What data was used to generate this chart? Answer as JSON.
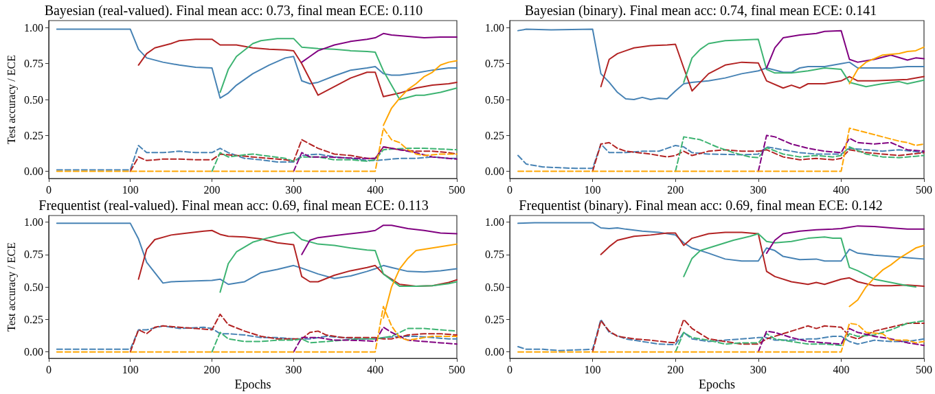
{
  "chart_data": [
    {
      "type": "line",
      "title": "Bayesian (real-valued). Final mean acc: 0.73, final mean ECE: 0.110",
      "ylabel": "Test accuracy / ECE",
      "marker": "none",
      "xlim": [
        0,
        500
      ],
      "xticks": [
        0,
        100,
        200,
        300,
        400,
        500
      ],
      "ylim": [
        -0.05,
        1.05
      ],
      "yticks": [
        {
          "value": 0,
          "label": "0.00"
        },
        {
          "value": 0.25,
          "label": "0.25"
        },
        {
          "value": 0.5,
          "label": "0.50"
        },
        {
          "value": 0.75,
          "label": "0.75"
        },
        {
          "value": 1,
          "label": "1.00"
        }
      ],
      "series": [
        {
          "color": "#4682b4",
          "line_style": "solid",
          "x": [
            10,
            100,
            110,
            120,
            140,
            160,
            180,
            200,
            210,
            220,
            230,
            250,
            270,
            290,
            300,
            310,
            320,
            330,
            350,
            370,
            390,
            400,
            410,
            420,
            430,
            450,
            470,
            490,
            500
          ],
          "values": [
            0.99,
            0.99,
            0.85,
            0.79,
            0.76,
            0.74,
            0.725,
            0.72,
            0.51,
            0.545,
            0.6,
            0.68,
            0.74,
            0.79,
            0.8,
            0.63,
            0.61,
            0.62,
            0.665,
            0.705,
            0.72,
            0.73,
            0.68,
            0.67,
            0.67,
            0.685,
            0.705,
            0.72,
            0.72
          ]
        },
        {
          "color": "#b22222",
          "line_style": "solid",
          "x": [
            110,
            120,
            130,
            150,
            160,
            180,
            200,
            210,
            230,
            250,
            270,
            290,
            300,
            310,
            330,
            350,
            370,
            390,
            400,
            410,
            430,
            450,
            470,
            490,
            500
          ],
          "values": [
            0.74,
            0.82,
            0.86,
            0.89,
            0.91,
            0.92,
            0.92,
            0.88,
            0.88,
            0.86,
            0.85,
            0.845,
            0.84,
            0.75,
            0.53,
            0.59,
            0.65,
            0.69,
            0.69,
            0.52,
            0.545,
            0.58,
            0.6,
            0.61,
            0.62
          ]
        },
        {
          "color": "#3cb371",
          "line_style": "solid",
          "x": [
            210,
            220,
            230,
            250,
            260,
            280,
            300,
            310,
            330,
            350,
            370,
            390,
            400,
            410,
            430,
            450,
            460,
            480,
            500
          ],
          "values": [
            0.55,
            0.71,
            0.8,
            0.89,
            0.91,
            0.925,
            0.925,
            0.865,
            0.855,
            0.85,
            0.84,
            0.835,
            0.83,
            0.7,
            0.5,
            0.53,
            0.53,
            0.55,
            0.58
          ]
        },
        {
          "color": "#800080",
          "line_style": "solid",
          "x": [
            310,
            320,
            330,
            350,
            370,
            390,
            400,
            410,
            420,
            440,
            460,
            480,
            500
          ],
          "values": [
            0.76,
            0.8,
            0.84,
            0.88,
            0.905,
            0.92,
            0.93,
            0.96,
            0.95,
            0.94,
            0.93,
            0.935,
            0.935
          ]
        },
        {
          "color": "#ffa500",
          "line_style": "solid",
          "x": [
            410,
            420,
            430,
            440,
            450,
            460,
            470,
            480,
            490,
            500
          ],
          "values": [
            0.32,
            0.44,
            0.51,
            0.57,
            0.61,
            0.66,
            0.69,
            0.74,
            0.76,
            0.77
          ]
        },
        {
          "color": "#4682b4",
          "line_style": "dashed",
          "x": [
            10,
            100,
            110,
            120,
            140,
            160,
            180,
            200,
            210,
            220,
            240,
            260,
            280,
            300,
            310,
            330,
            350,
            370,
            390,
            400,
            410,
            430,
            450,
            470,
            490,
            500
          ],
          "values": [
            0.01,
            0.01,
            0.18,
            0.13,
            0.13,
            0.14,
            0.13,
            0.13,
            0.16,
            0.13,
            0.09,
            0.08,
            0.065,
            0.065,
            0.11,
            0.12,
            0.1,
            0.09,
            0.075,
            0.075,
            0.08,
            0.09,
            0.09,
            0.1,
            0.09,
            0.09
          ]
        },
        {
          "color": "#b22222",
          "line_style": "dashed",
          "x": [
            100,
            110,
            120,
            140,
            160,
            180,
            200,
            210,
            230,
            250,
            270,
            290,
            300,
            310,
            330,
            350,
            370,
            390,
            400,
            410,
            430,
            450,
            470,
            490,
            500
          ],
          "values": [
            0,
            0.1,
            0.075,
            0.085,
            0.085,
            0.08,
            0.08,
            0.12,
            0.11,
            0.1,
            0.09,
            0.08,
            0.07,
            0.22,
            0.16,
            0.12,
            0.11,
            0.09,
            0.09,
            0.17,
            0.15,
            0.14,
            0.14,
            0.13,
            0.12
          ]
        },
        {
          "color": "#3cb371",
          "line_style": "dashed",
          "x": [
            200,
            210,
            220,
            240,
            250,
            270,
            290,
            300,
            310,
            330,
            350,
            370,
            390,
            400,
            410,
            420,
            440,
            460,
            480,
            500
          ],
          "values": [
            0,
            0.13,
            0.1,
            0.115,
            0.12,
            0.105,
            0.09,
            0.07,
            0.1,
            0.1,
            0.08,
            0.08,
            0.07,
            0.08,
            0.15,
            0.155,
            0.16,
            0.16,
            0.155,
            0.15
          ]
        },
        {
          "color": "#800080",
          "line_style": "dashed",
          "x": [
            300,
            310,
            320,
            340,
            360,
            380,
            400,
            410,
            430,
            450,
            470,
            490,
            500
          ],
          "values": [
            0,
            0.13,
            0.1,
            0.1,
            0.095,
            0.09,
            0.09,
            0.17,
            0.15,
            0.13,
            0.1,
            0.09,
            0.085
          ]
        },
        {
          "color": "#ffa500",
          "line_style": "dashed",
          "x": [
            10,
            400,
            410,
            420,
            430,
            440,
            450,
            460,
            480,
            500
          ],
          "values": [
            0,
            0,
            0.3,
            0.22,
            0.2,
            0.15,
            0.12,
            0.11,
            0.12,
            0.12
          ]
        }
      ]
    },
    {
      "type": "line",
      "title": "Bayesian (binary). Final mean acc: 0.74, final mean ECE: 0.141",
      "marker": "none",
      "xlim": [
        0,
        500
      ],
      "xticks": [
        0,
        100,
        200,
        300,
        400,
        500
      ],
      "ylim": [
        -0.05,
        1.05
      ],
      "yticks": [
        {
          "value": 0,
          "label": "0.00"
        },
        {
          "value": 0.25,
          "label": "0.25"
        },
        {
          "value": 0.5,
          "label": "0.50"
        },
        {
          "value": 0.75,
          "label": "0.75"
        },
        {
          "value": 1,
          "label": "1.00"
        }
      ],
      "series": [
        {
          "color": "#4682b4",
          "line_style": "solid",
          "x": [
            10,
            20,
            50,
            100,
            110,
            120,
            130,
            140,
            150,
            160,
            170,
            180,
            190,
            200,
            210,
            220,
            240,
            260,
            280,
            300,
            310,
            330,
            340,
            350,
            360,
            380,
            400,
            410,
            420,
            440,
            460,
            480,
            500
          ],
          "values": [
            0.98,
            0.99,
            0.985,
            0.99,
            0.68,
            0.62,
            0.55,
            0.505,
            0.5,
            0.515,
            0.5,
            0.51,
            0.505,
            0.56,
            0.61,
            0.62,
            0.63,
            0.65,
            0.68,
            0.7,
            0.72,
            0.69,
            0.69,
            0.72,
            0.73,
            0.73,
            0.75,
            0.76,
            0.72,
            0.72,
            0.72,
            0.73,
            0.73
          ]
        },
        {
          "color": "#b22222",
          "line_style": "solid",
          "x": [
            110,
            120,
            130,
            140,
            150,
            170,
            190,
            200,
            210,
            220,
            240,
            260,
            280,
            300,
            310,
            330,
            340,
            350,
            360,
            380,
            400,
            410,
            420,
            440,
            460,
            480,
            500
          ],
          "values": [
            0.59,
            0.78,
            0.82,
            0.84,
            0.86,
            0.875,
            0.88,
            0.885,
            0.72,
            0.56,
            0.68,
            0.74,
            0.76,
            0.755,
            0.63,
            0.58,
            0.6,
            0.58,
            0.61,
            0.61,
            0.63,
            0.66,
            0.63,
            0.63,
            0.635,
            0.64,
            0.66
          ]
        },
        {
          "color": "#3cb371",
          "line_style": "solid",
          "x": [
            210,
            220,
            230,
            240,
            260,
            280,
            300,
            310,
            320,
            340,
            360,
            380,
            400,
            410,
            430,
            450,
            470,
            480,
            500
          ],
          "values": [
            0.62,
            0.79,
            0.85,
            0.89,
            0.91,
            0.915,
            0.92,
            0.71,
            0.685,
            0.685,
            0.7,
            0.72,
            0.71,
            0.62,
            0.59,
            0.61,
            0.625,
            0.61,
            0.635
          ]
        },
        {
          "color": "#800080",
          "line_style": "solid",
          "x": [
            310,
            320,
            330,
            350,
            370,
            380,
            400,
            410,
            420,
            440,
            460,
            480,
            490,
            500
          ],
          "values": [
            0.72,
            0.86,
            0.93,
            0.95,
            0.96,
            0.975,
            0.98,
            0.78,
            0.76,
            0.78,
            0.81,
            0.775,
            0.79,
            0.785
          ]
        },
        {
          "color": "#ffa500",
          "line_style": "solid",
          "x": [
            410,
            420,
            430,
            450,
            470,
            480,
            490,
            500
          ],
          "values": [
            0.61,
            0.71,
            0.76,
            0.81,
            0.82,
            0.835,
            0.84,
            0.865
          ]
        },
        {
          "color": "#4682b4",
          "line_style": "dashed",
          "x": [
            10,
            20,
            40,
            60,
            80,
            100,
            110,
            120,
            140,
            160,
            180,
            200,
            210,
            220,
            240,
            280,
            300,
            310,
            330,
            350,
            370,
            390,
            400,
            410,
            430,
            450,
            470,
            500
          ],
          "values": [
            0.11,
            0.05,
            0.03,
            0.025,
            0.02,
            0.02,
            0.19,
            0.13,
            0.13,
            0.14,
            0.14,
            0.18,
            0.17,
            0.13,
            0.12,
            0.115,
            0.12,
            0.17,
            0.15,
            0.13,
            0.12,
            0.12,
            0.12,
            0.16,
            0.15,
            0.14,
            0.15,
            0.13
          ]
        },
        {
          "color": "#b22222",
          "line_style": "dashed",
          "x": [
            100,
            110,
            120,
            130,
            140,
            170,
            190,
            200,
            210,
            220,
            240,
            260,
            280,
            300,
            310,
            330,
            350,
            370,
            390,
            400,
            410,
            430,
            450,
            470,
            500
          ],
          "values": [
            0,
            0.19,
            0.2,
            0.16,
            0.14,
            0.12,
            0.1,
            0.11,
            0.14,
            0.11,
            0.14,
            0.15,
            0.14,
            0.14,
            0.15,
            0.1,
            0.08,
            0.09,
            0.08,
            0.09,
            0.15,
            0.13,
            0.12,
            0.11,
            0.13
          ]
        },
        {
          "color": "#3cb371",
          "line_style": "dashed",
          "x": [
            200,
            210,
            230,
            250,
            270,
            290,
            300,
            310,
            330,
            350,
            370,
            390,
            400,
            410,
            430,
            450,
            470,
            500
          ],
          "values": [
            0,
            0.24,
            0.22,
            0.17,
            0.13,
            0.1,
            0.095,
            0.165,
            0.12,
            0.1,
            0.11,
            0.1,
            0.11,
            0.17,
            0.12,
            0.1,
            0.095,
            0.11
          ]
        },
        {
          "color": "#800080",
          "line_style": "dashed",
          "x": [
            300,
            310,
            320,
            340,
            360,
            380,
            400,
            410,
            420,
            440,
            460,
            480,
            500
          ],
          "values": [
            0,
            0.25,
            0.24,
            0.19,
            0.16,
            0.14,
            0.13,
            0.23,
            0.2,
            0.19,
            0.2,
            0.15,
            0.14
          ]
        },
        {
          "color": "#ffa500",
          "line_style": "dashed",
          "x": [
            10,
            400,
            410,
            430,
            450,
            470,
            480,
            490,
            500
          ],
          "values": [
            0,
            0,
            0.3,
            0.27,
            0.24,
            0.21,
            0.2,
            0.18,
            0.19
          ]
        }
      ]
    },
    {
      "type": "line",
      "title": "Frequentist (real-valued). Final mean acc: 0.69, final mean ECE: 0.113",
      "xlabel": "Epochs",
      "ylabel": "Test accuracy / ECE",
      "marker": "none",
      "xlim": [
        0,
        500
      ],
      "xticks": [
        0,
        100,
        200,
        300,
        400,
        500
      ],
      "ylim": [
        -0.05,
        1.05
      ],
      "yticks": [
        {
          "value": 0,
          "label": "0.00"
        },
        {
          "value": 0.25,
          "label": "0.25"
        },
        {
          "value": 0.5,
          "label": "0.50"
        },
        {
          "value": 0.75,
          "label": "0.75"
        },
        {
          "value": 1,
          "label": "1.00"
        }
      ],
      "series": [
        {
          "color": "#4682b4",
          "line_style": "solid",
          "x": [
            10,
            100,
            110,
            120,
            140,
            150,
            200,
            210,
            220,
            240,
            260,
            280,
            300,
            310,
            330,
            350,
            370,
            390,
            400,
            410,
            420,
            440,
            460,
            480,
            500
          ],
          "values": [
            0.99,
            0.99,
            0.87,
            0.69,
            0.53,
            0.54,
            0.55,
            0.56,
            0.52,
            0.54,
            0.61,
            0.635,
            0.665,
            0.645,
            0.6,
            0.565,
            0.585,
            0.62,
            0.64,
            0.665,
            0.65,
            0.62,
            0.615,
            0.625,
            0.64
          ]
        },
        {
          "color": "#b22222",
          "line_style": "solid",
          "x": [
            110,
            120,
            130,
            150,
            170,
            190,
            200,
            210,
            220,
            240,
            260,
            280,
            300,
            310,
            320,
            330,
            350,
            370,
            390,
            400,
            410,
            430,
            450,
            470,
            490,
            500
          ],
          "values": [
            0.56,
            0.79,
            0.865,
            0.9,
            0.915,
            0.93,
            0.935,
            0.905,
            0.89,
            0.885,
            0.87,
            0.84,
            0.825,
            0.58,
            0.54,
            0.54,
            0.59,
            0.625,
            0.65,
            0.665,
            0.6,
            0.52,
            0.505,
            0.51,
            0.535,
            0.555
          ]
        },
        {
          "color": "#3cb371",
          "line_style": "solid",
          "x": [
            210,
            220,
            230,
            250,
            270,
            290,
            300,
            310,
            330,
            350,
            370,
            390,
            400,
            410,
            430,
            450,
            470,
            490,
            500
          ],
          "values": [
            0.46,
            0.68,
            0.77,
            0.845,
            0.88,
            0.91,
            0.92,
            0.865,
            0.83,
            0.82,
            0.8,
            0.785,
            0.78,
            0.6,
            0.505,
            0.505,
            0.51,
            0.525,
            0.54
          ]
        },
        {
          "color": "#800080",
          "line_style": "solid",
          "x": [
            310,
            320,
            330,
            350,
            370,
            390,
            400,
            410,
            420,
            440,
            460,
            480,
            500
          ],
          "values": [
            0.75,
            0.86,
            0.88,
            0.895,
            0.91,
            0.925,
            0.935,
            0.975,
            0.975,
            0.95,
            0.935,
            0.915,
            0.91
          ]
        },
        {
          "color": "#ffa500",
          "line_style": "solid",
          "x": [
            410,
            420,
            430,
            440,
            450,
            470,
            490,
            500
          ],
          "values": [
            0.26,
            0.5,
            0.64,
            0.72,
            0.78,
            0.8,
            0.82,
            0.83
          ]
        },
        {
          "color": "#4682b4",
          "line_style": "dashed",
          "x": [
            10,
            100,
            110,
            120,
            140,
            160,
            190,
            200,
            210,
            220,
            240,
            260,
            280,
            300,
            320,
            340,
            360,
            380,
            400,
            410,
            430,
            450,
            470,
            490,
            500
          ],
          "values": [
            0.02,
            0.02,
            0.17,
            0.17,
            0.2,
            0.18,
            0.19,
            0.18,
            0.14,
            0.14,
            0.13,
            0.11,
            0.11,
            0.1,
            0.1,
            0.12,
            0.11,
            0.1,
            0.1,
            0.11,
            0.12,
            0.12,
            0.11,
            0.1,
            0.1
          ]
        },
        {
          "color": "#b22222",
          "line_style": "dashed",
          "x": [
            100,
            110,
            120,
            130,
            140,
            160,
            180,
            200,
            210,
            220,
            240,
            260,
            280,
            300,
            310,
            320,
            330,
            340,
            360,
            380,
            400,
            410,
            420,
            440,
            460,
            480,
            500
          ],
          "values": [
            0,
            0.17,
            0.14,
            0.19,
            0.2,
            0.19,
            0.18,
            0.17,
            0.29,
            0.21,
            0.16,
            0.12,
            0.1,
            0.1,
            0.1,
            0.15,
            0.16,
            0.13,
            0.11,
            0.11,
            0.11,
            0.1,
            0.1,
            0.13,
            0.14,
            0.14,
            0.13
          ]
        },
        {
          "color": "#3cb371",
          "line_style": "dashed",
          "x": [
            200,
            210,
            220,
            240,
            260,
            280,
            300,
            310,
            320,
            340,
            360,
            380,
            400,
            410,
            420,
            440,
            460,
            480,
            500
          ],
          "values": [
            0,
            0.15,
            0.1,
            0.08,
            0.08,
            0.09,
            0.09,
            0.1,
            0.07,
            0.08,
            0.09,
            0.1,
            0.1,
            0.11,
            0.12,
            0.18,
            0.18,
            0.17,
            0.16
          ]
        },
        {
          "color": "#800080",
          "line_style": "dashed",
          "x": [
            300,
            310,
            330,
            350,
            370,
            390,
            400,
            410,
            420,
            440,
            460,
            480,
            500
          ],
          "values": [
            0,
            0.11,
            0.11,
            0.09,
            0.09,
            0.085,
            0.08,
            0.19,
            0.15,
            0.09,
            0.08,
            0.07,
            0.06
          ]
        },
        {
          "color": "#ffa500",
          "line_style": "dashed",
          "x": [
            10,
            400,
            410,
            420,
            430,
            440,
            450,
            470,
            490,
            500
          ],
          "values": [
            0,
            0,
            0.35,
            0.2,
            0.11,
            0.09,
            0.1,
            0.12,
            0.12,
            0.12
          ]
        }
      ]
    },
    {
      "type": "line",
      "title": "Frequentist (binary). Final mean acc: 0.69, final mean ECE: 0.142",
      "xlabel": "Epochs",
      "marker": "none",
      "xlim": [
        0,
        500
      ],
      "xticks": [
        0,
        100,
        200,
        300,
        400,
        500
      ],
      "ylim": [
        -0.05,
        1.05
      ],
      "yticks": [
        {
          "value": 0,
          "label": "0.00"
        },
        {
          "value": 0.25,
          "label": "0.25"
        },
        {
          "value": 0.5,
          "label": "0.50"
        },
        {
          "value": 0.75,
          "label": "0.75"
        },
        {
          "value": 1,
          "label": "1.00"
        }
      ],
      "series": [
        {
          "color": "#4682b4",
          "line_style": "solid",
          "x": [
            10,
            30,
            100,
            110,
            120,
            130,
            140,
            160,
            180,
            200,
            210,
            220,
            240,
            260,
            280,
            300,
            310,
            320,
            330,
            350,
            370,
            380,
            400,
            410,
            420,
            440,
            460,
            480,
            500
          ],
          "values": [
            0.99,
            0.995,
            0.995,
            0.955,
            0.95,
            0.955,
            0.945,
            0.93,
            0.92,
            0.9,
            0.84,
            0.8,
            0.76,
            0.715,
            0.7,
            0.7,
            0.8,
            0.78,
            0.735,
            0.71,
            0.715,
            0.7,
            0.7,
            0.79,
            0.76,
            0.745,
            0.735,
            0.725,
            0.715
          ]
        },
        {
          "color": "#b22222",
          "line_style": "solid",
          "x": [
            110,
            120,
            130,
            150,
            170,
            190,
            200,
            210,
            220,
            240,
            260,
            280,
            300,
            310,
            320,
            340,
            360,
            370,
            380,
            400,
            410,
            420,
            440,
            460,
            480,
            500
          ],
          "values": [
            0.75,
            0.81,
            0.86,
            0.89,
            0.9,
            0.915,
            0.915,
            0.82,
            0.875,
            0.91,
            0.92,
            0.92,
            0.91,
            0.62,
            0.58,
            0.54,
            0.52,
            0.535,
            0.52,
            0.56,
            0.57,
            0.54,
            0.51,
            0.51,
            0.515,
            0.505
          ]
        },
        {
          "color": "#3cb371",
          "line_style": "solid",
          "x": [
            210,
            220,
            230,
            250,
            270,
            290,
            300,
            310,
            320,
            340,
            360,
            380,
            390,
            400,
            410,
            420,
            440,
            460,
            480,
            490
          ],
          "values": [
            0.58,
            0.72,
            0.78,
            0.82,
            0.86,
            0.89,
            0.91,
            0.85,
            0.84,
            0.85,
            0.875,
            0.885,
            0.875,
            0.875,
            0.65,
            0.625,
            0.56,
            0.535,
            0.51,
            0.5
          ]
        },
        {
          "color": "#800080",
          "line_style": "solid",
          "x": [
            310,
            320,
            330,
            350,
            370,
            390,
            400,
            410,
            420,
            440,
            460,
            480,
            500
          ],
          "values": [
            0.76,
            0.86,
            0.91,
            0.93,
            0.94,
            0.945,
            0.95,
            0.96,
            0.97,
            0.965,
            0.955,
            0.945,
            0.945
          ]
        },
        {
          "color": "#ffa500",
          "line_style": "solid",
          "x": [
            410,
            420,
            430,
            440,
            450,
            460,
            470,
            480,
            490,
            500
          ],
          "values": [
            0.35,
            0.4,
            0.5,
            0.57,
            0.63,
            0.67,
            0.72,
            0.76,
            0.8,
            0.82
          ]
        },
        {
          "color": "#4682b4",
          "line_style": "dashed",
          "x": [
            10,
            20,
            40,
            60,
            80,
            100,
            110,
            120,
            140,
            160,
            180,
            200,
            210,
            220,
            240,
            260,
            280,
            300,
            310,
            320,
            340,
            360,
            370,
            390,
            400,
            410,
            420,
            440,
            460,
            480,
            500
          ],
          "values": [
            0.04,
            0.02,
            0.02,
            0.01,
            0.015,
            0.02,
            0.25,
            0.15,
            0.1,
            0.08,
            0.06,
            0.055,
            0.15,
            0.1,
            0.08,
            0.09,
            0.1,
            0.11,
            0.11,
            0.09,
            0.09,
            0.1,
            0.1,
            0.12,
            0.12,
            0.08,
            0.06,
            0.09,
            0.08,
            0.08,
            0.1
          ]
        },
        {
          "color": "#b22222",
          "line_style": "dashed",
          "x": [
            100,
            110,
            120,
            130,
            150,
            170,
            190,
            200,
            210,
            220,
            240,
            260,
            280,
            300,
            310,
            320,
            340,
            360,
            370,
            380,
            400,
            410,
            420,
            440,
            460,
            480,
            500
          ],
          "values": [
            0,
            0.24,
            0.16,
            0.12,
            0.1,
            0.09,
            0.075,
            0.07,
            0.25,
            0.18,
            0.1,
            0.08,
            0.06,
            0.06,
            0.1,
            0.12,
            0.16,
            0.2,
            0.18,
            0.2,
            0.19,
            0.12,
            0.1,
            0.16,
            0.19,
            0.22,
            0.22
          ]
        },
        {
          "color": "#3cb371",
          "line_style": "dashed",
          "x": [
            200,
            210,
            220,
            240,
            260,
            280,
            300,
            310,
            320,
            340,
            360,
            380,
            400,
            410,
            420,
            440,
            460,
            480,
            500
          ],
          "values": [
            0,
            0.15,
            0.11,
            0.09,
            0.06,
            0.07,
            0.07,
            0.14,
            0.1,
            0.08,
            0.06,
            0.06,
            0.05,
            0.14,
            0.12,
            0.13,
            0.17,
            0.22,
            0.24
          ]
        },
        {
          "color": "#800080",
          "line_style": "dashed",
          "x": [
            300,
            310,
            320,
            340,
            360,
            380,
            400,
            410,
            420,
            440,
            460,
            480,
            500
          ],
          "values": [
            0,
            0.16,
            0.15,
            0.11,
            0.08,
            0.07,
            0.06,
            0.18,
            0.15,
            0.12,
            0.1,
            0.07,
            0.05
          ]
        },
        {
          "color": "#ffa500",
          "line_style": "dashed",
          "x": [
            10,
            400,
            410,
            420,
            430,
            450,
            460,
            480,
            490,
            500
          ],
          "values": [
            0,
            0,
            0.22,
            0.21,
            0.15,
            0.14,
            0.09,
            0.09,
            0.07,
            0.08
          ]
        }
      ]
    }
  ]
}
